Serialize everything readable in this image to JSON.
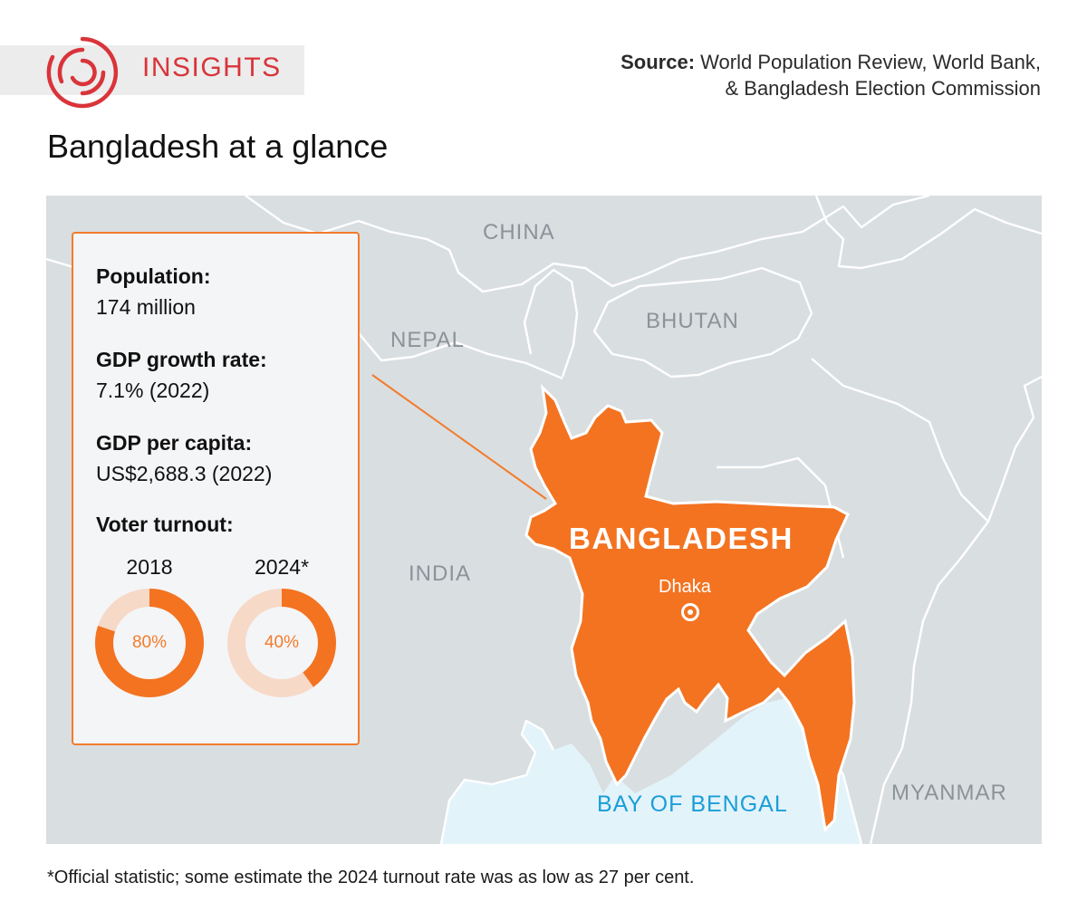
{
  "header": {
    "brand": "INSIGHTS",
    "source_label": "Source:",
    "source_text": "World Population Review, World Bank, & Bangladesh Election Commission",
    "title": "Bangladesh at a glance"
  },
  "map": {
    "country_labels": {
      "china": "CHINA",
      "nepal": "NEPAL",
      "bhutan": "BHUTAN",
      "india": "INDIA",
      "myanmar": "MYANMAR"
    },
    "sea_label": "BAY OF BENGAL",
    "highlight_label": "BANGLADESH",
    "capital": "Dhaka",
    "colors": {
      "highlight": "#f37321",
      "land": "#d9dee1",
      "sea": "#e3f3fa",
      "border": "#ffffff",
      "accent": "#f37b2b"
    }
  },
  "facts": {
    "population_label": "Population:",
    "population_value": "174 million",
    "gdp_growth_label": "GDP growth rate:",
    "gdp_growth_value": "7.1% (2022)",
    "gdp_per_capita_label": "GDP per capita:",
    "gdp_per_capita_value": "US$2,688.3 (2022)",
    "turnout_label": "Voter turnout:"
  },
  "turnout": [
    {
      "year": "2018",
      "label": "80%",
      "value": 0.8
    },
    {
      "year": "2024*",
      "label": "40%",
      "value": 0.4
    }
  ],
  "footnote": "*Official statistic; some estimate the 2024 turnout rate was as low as 27 per cent."
}
